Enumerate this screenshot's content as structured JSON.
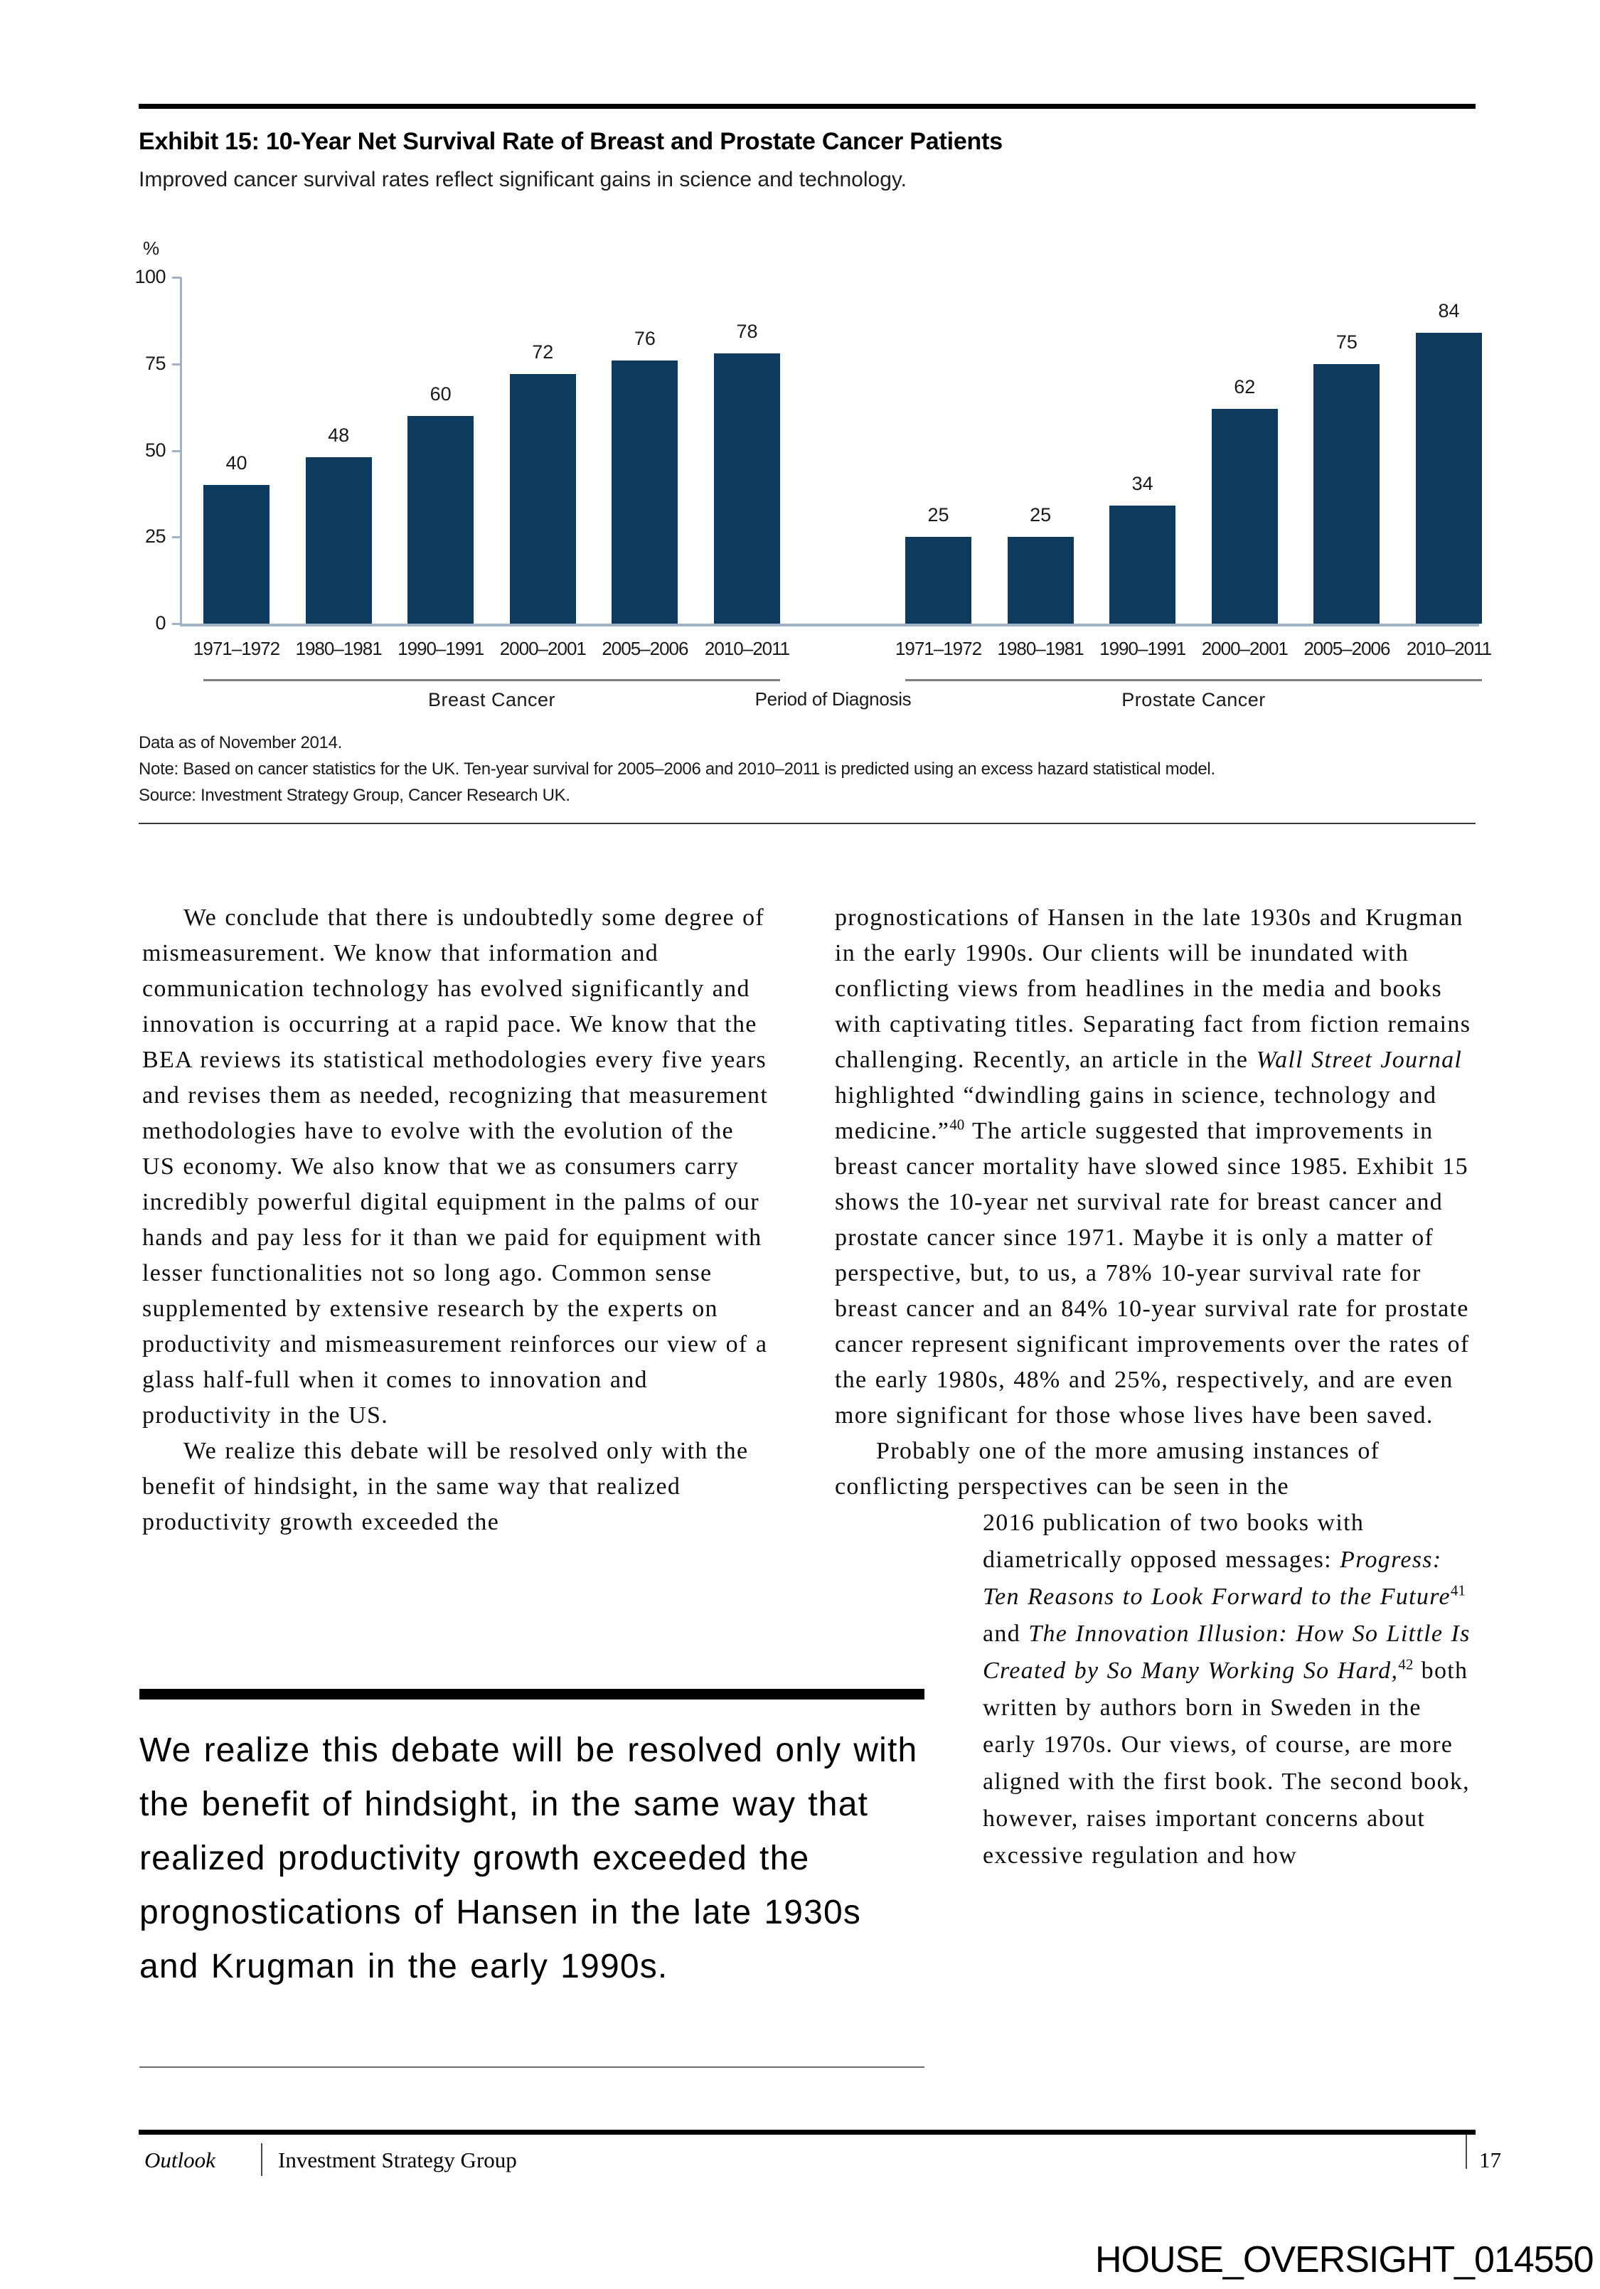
{
  "exhibit": {
    "title": "Exhibit 15: 10-Year Net Survival Rate of Breast and Prostate Cancer Patients",
    "subtitle": "Improved cancer survival rates reflect significant gains in science and technology."
  },
  "chart_data": {
    "type": "bar",
    "unit": "%",
    "categories": [
      "1971–1972",
      "1980–1981",
      "1990–1991",
      "2000–2001",
      "2005–2006",
      "2010–2011"
    ],
    "series": [
      {
        "name": "Breast Cancer",
        "values": [
          40,
          48,
          60,
          72,
          76,
          78
        ]
      },
      {
        "name": "Prostate Cancer",
        "values": [
          25,
          25,
          34,
          62,
          75,
          84
        ]
      }
    ],
    "xlabel": "Period of Diagnosis",
    "ylim": [
      0,
      100
    ],
    "yticks": [
      0,
      25,
      50,
      75,
      100
    ],
    "grid": false,
    "legend": "none",
    "value_labels": true,
    "bar_color": "#0e3a5e",
    "axis_color": "#a0b3c6"
  },
  "notes": {
    "data_as_of": "Data as of November 2014.",
    "note": "Note: Based on cancer statistics for the UK. Ten-year survival for 2005–2006 and 2010–2011 is predicted using an excess hazard statistical model.",
    "source": "Source: Investment Strategy Group, Cancer Research UK."
  },
  "body": {
    "left_col": {
      "p1": "We conclude that there is undoubtedly some degree of mismeasurement. We know that information and communication technology has evolved significantly and innovation is occurring at a rapid pace. We know that the BEA reviews its statistical methodologies every five years and revises them as needed, recognizing that measurement methodologies have to evolve with the evolution of the US economy. We also know that we as consumers carry incredibly powerful digital equipment in the palms of our hands and pay less for it than we paid for equipment with lesser functionalities not so long ago. Common sense supplemented by extensive research by the experts on productivity and mismeasurement reinforces our view of a glass half-full when it comes to innovation and productivity in the US.",
      "p2": "We realize this debate will be resolved only with the benefit of hindsight, in the same way that realized productivity growth exceeded the"
    },
    "right_col": {
      "p1_a": "prognostications of Hansen in the late 1930s and Krugman in the early 1990s. Our clients will be inundated with conflicting views from headlines in the media and books with captivating titles. Separating fact from fiction remains challenging. Recently, an article in the ",
      "p1_wsj": "Wall Street Journal",
      "p1_b": " highlighted “dwindling gains in science, technology and medicine.”",
      "p1_fn": "40",
      "p1_c": " The article suggested that improvements in breast cancer mortality have slowed since 1985. Exhibit 15 shows the 10-year net survival rate for breast cancer and prostate cancer since 1971. Maybe it is only a matter of perspective, but, to us, a 78% 10-year survival rate for breast cancer and an 84% 10-year survival rate for prostate cancer represent significant improvements over the rates of the early 1980s, 48% and 25%, respectively, and are even more significant for those whose lives have been saved.",
      "p2": "Probably one of the more amusing instances of conflicting perspectives can be seen in the",
      "n_a": "2016 publication of two books with diametrically opposed messages: ",
      "n_b": "Progress: Ten Reasons to Look Forward to the Future",
      "n_fn1": "41",
      "n_c": " and ",
      "n_d": "The Innovation Illusion: How So Little Is Created by So Many Working So Hard,",
      "n_fn2": "42",
      "n_e": " both written by authors born in Sweden in the early 1970s. Our views, of course, are more aligned with the first book. The second book, however, raises important concerns about excessive regulation and how"
    }
  },
  "pull_quote": {
    "text": "We realize this debate will be resolved only with the benefit of hindsight, in the same way that realized productivity growth exceeded the prognostications of Hansen in the late 1930s and Krugman in the early 1990s."
  },
  "footer": {
    "publication": "Outlook",
    "organization": "Investment Strategy Group",
    "page_number": "17"
  },
  "watermark": "HOUSE_OVERSIGHT_014550"
}
